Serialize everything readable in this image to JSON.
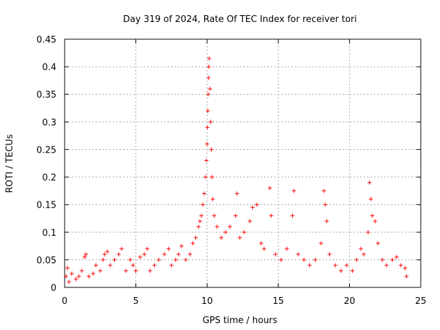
{
  "chart_data": {
    "type": "scatter",
    "title": "Day 319 of 2024, Rate Of TEC Index for receiver tori",
    "xlabel": "GPS time / hours",
    "ylabel": "ROTI / TECUs",
    "xlim": [
      0,
      25
    ],
    "ylim": [
      0,
      0.45
    ],
    "xticks": [
      "0",
      "5",
      "10",
      "15",
      "20",
      "25"
    ],
    "yticks": [
      "0",
      "0.05",
      "0.1",
      "0.15",
      "0.2",
      "0.25",
      "0.3",
      "0.35",
      "0.4",
      "0.45"
    ],
    "grid": true,
    "marker": "+",
    "series_color": "#ff0000",
    "series": [
      {
        "points": [
          [
            0.1,
            0.02
          ],
          [
            0.2,
            0.035
          ],
          [
            0.3,
            0.01
          ],
          [
            0.5,
            0.025
          ],
          [
            0.8,
            0.015
          ],
          [
            1.0,
            0.02
          ],
          [
            1.2,
            0.03
          ],
          [
            1.4,
            0.055
          ],
          [
            1.5,
            0.06
          ],
          [
            1.7,
            0.02
          ],
          [
            2.0,
            0.025
          ],
          [
            2.2,
            0.04
          ],
          [
            2.5,
            0.03
          ],
          [
            2.7,
            0.05
          ],
          [
            2.8,
            0.06
          ],
          [
            3.0,
            0.065
          ],
          [
            3.2,
            0.04
          ],
          [
            3.5,
            0.05
          ],
          [
            3.8,
            0.06
          ],
          [
            4.0,
            0.07
          ],
          [
            4.3,
            0.03
          ],
          [
            4.6,
            0.05
          ],
          [
            4.8,
            0.04
          ],
          [
            5.0,
            0.03
          ],
          [
            5.3,
            0.055
          ],
          [
            5.6,
            0.06
          ],
          [
            5.8,
            0.07
          ],
          [
            6.0,
            0.03
          ],
          [
            6.3,
            0.04
          ],
          [
            6.6,
            0.05
          ],
          [
            7.0,
            0.06
          ],
          [
            7.3,
            0.07
          ],
          [
            7.5,
            0.04
          ],
          [
            7.8,
            0.05
          ],
          [
            8.0,
            0.06
          ],
          [
            8.2,
            0.075
          ],
          [
            8.5,
            0.05
          ],
          [
            8.8,
            0.06
          ],
          [
            9.0,
            0.08
          ],
          [
            9.2,
            0.09
          ],
          [
            9.4,
            0.11
          ],
          [
            9.5,
            0.12
          ],
          [
            9.6,
            0.13
          ],
          [
            9.7,
            0.15
          ],
          [
            9.8,
            0.17
          ],
          [
            9.9,
            0.2
          ],
          [
            9.95,
            0.23
          ],
          [
            10.0,
            0.26
          ],
          [
            10.02,
            0.29
          ],
          [
            10.05,
            0.32
          ],
          [
            10.08,
            0.35
          ],
          [
            10.1,
            0.38
          ],
          [
            10.12,
            0.4
          ],
          [
            10.15,
            0.415
          ],
          [
            10.2,
            0.36
          ],
          [
            10.25,
            0.3
          ],
          [
            10.3,
            0.25
          ],
          [
            10.35,
            0.2
          ],
          [
            10.4,
            0.16
          ],
          [
            10.5,
            0.13
          ],
          [
            10.7,
            0.11
          ],
          [
            11.0,
            0.09
          ],
          [
            11.3,
            0.1
          ],
          [
            11.6,
            0.11
          ],
          [
            12.0,
            0.13
          ],
          [
            12.1,
            0.17
          ],
          [
            12.3,
            0.09
          ],
          [
            12.6,
            0.1
          ],
          [
            13.0,
            0.12
          ],
          [
            13.2,
            0.145
          ],
          [
            13.5,
            0.15
          ],
          [
            13.8,
            0.08
          ],
          [
            14.0,
            0.07
          ],
          [
            14.4,
            0.18
          ],
          [
            14.5,
            0.13
          ],
          [
            14.8,
            0.06
          ],
          [
            15.2,
            0.05
          ],
          [
            15.6,
            0.07
          ],
          [
            16.0,
            0.13
          ],
          [
            16.1,
            0.175
          ],
          [
            16.4,
            0.06
          ],
          [
            16.8,
            0.05
          ],
          [
            17.2,
            0.04
          ],
          [
            17.6,
            0.05
          ],
          [
            18.0,
            0.08
          ],
          [
            18.2,
            0.175
          ],
          [
            18.3,
            0.15
          ],
          [
            18.4,
            0.12
          ],
          [
            18.6,
            0.06
          ],
          [
            19.0,
            0.04
          ],
          [
            19.4,
            0.03
          ],
          [
            19.8,
            0.04
          ],
          [
            20.2,
            0.03
          ],
          [
            20.5,
            0.05
          ],
          [
            20.8,
            0.07
          ],
          [
            21.0,
            0.06
          ],
          [
            21.3,
            0.1
          ],
          [
            21.4,
            0.19
          ],
          [
            21.5,
            0.16
          ],
          [
            21.6,
            0.13
          ],
          [
            21.8,
            0.12
          ],
          [
            22.0,
            0.08
          ],
          [
            22.3,
            0.05
          ],
          [
            22.6,
            0.04
          ],
          [
            23.0,
            0.05
          ],
          [
            23.3,
            0.055
          ],
          [
            23.6,
            0.04
          ],
          [
            23.9,
            0.035
          ],
          [
            24.0,
            0.02
          ]
        ]
      }
    ]
  }
}
